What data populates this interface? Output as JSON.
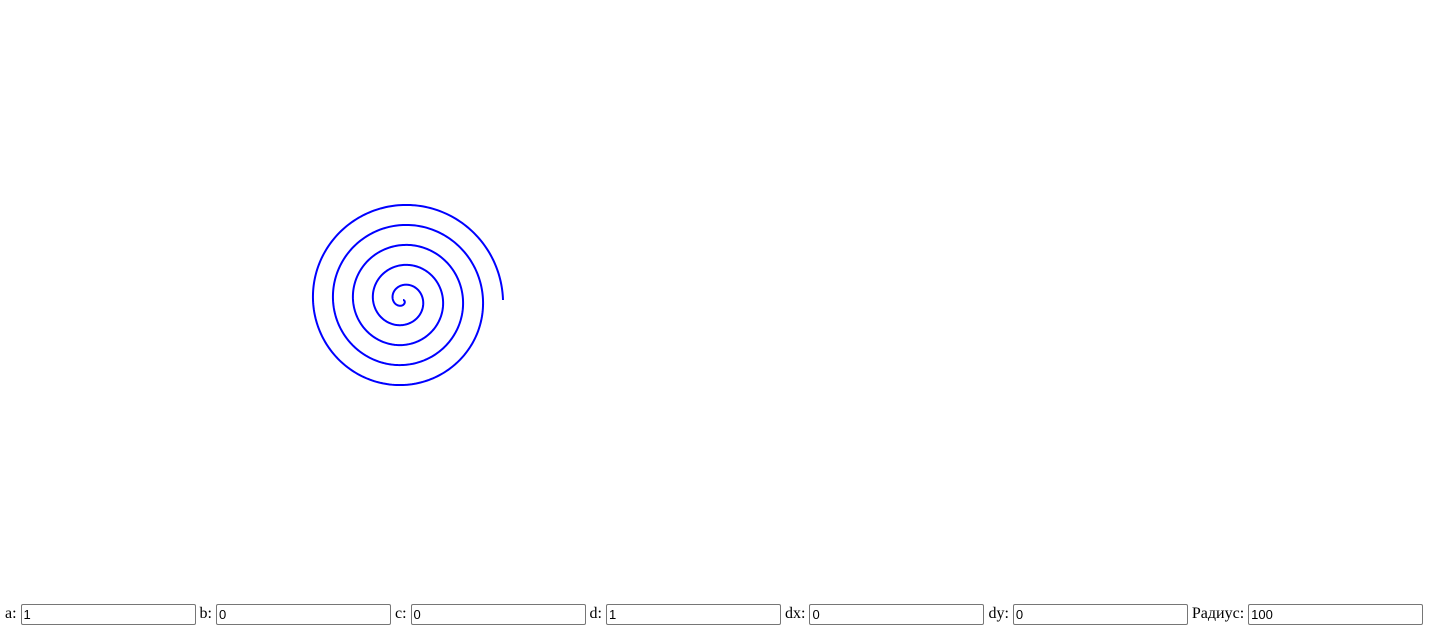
{
  "spiral": {
    "color": "#0000ff",
    "turns": 5
  },
  "controls": {
    "params": [
      {
        "key": "a",
        "label": "a:",
        "value": "1"
      },
      {
        "key": "b",
        "label": "b:",
        "value": "0"
      },
      {
        "key": "c",
        "label": "c:",
        "value": "0"
      },
      {
        "key": "d",
        "label": "d:",
        "value": "1"
      },
      {
        "key": "dx",
        "label": "dx:",
        "value": "0"
      },
      {
        "key": "dy",
        "label": "dy:",
        "value": "0"
      },
      {
        "key": "radius",
        "label": "Радиус:",
        "value": "100"
      }
    ]
  }
}
